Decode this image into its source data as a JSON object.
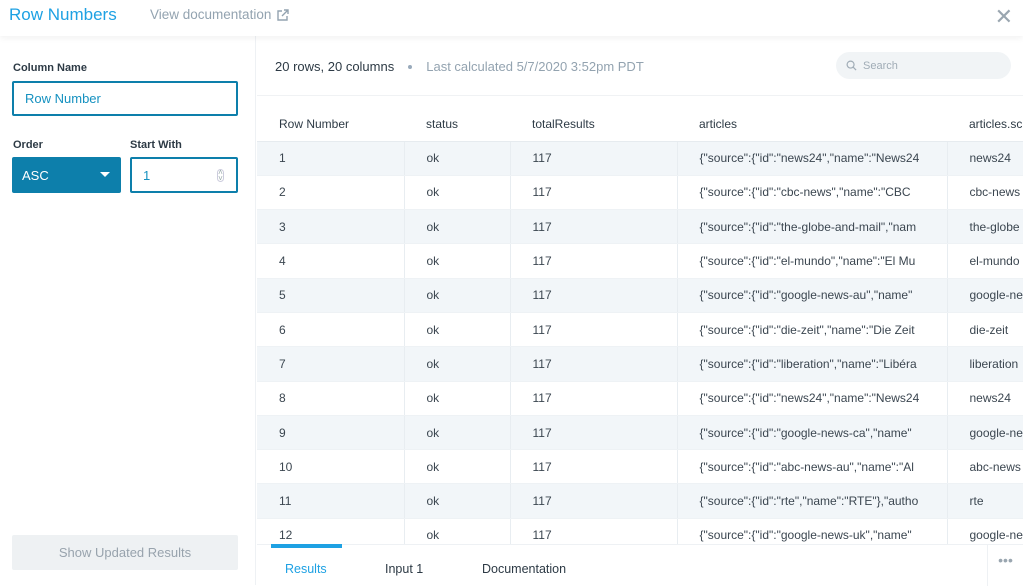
{
  "header": {
    "title": "Row Numbers",
    "doc_link": "View documentation",
    "external_icon": "external-link-icon",
    "close_icon": "close-icon"
  },
  "form": {
    "column_name_label": "Column Name",
    "column_name_value": "Row Number",
    "order_label": "Order",
    "order_value": "ASC",
    "start_with_label": "Start With",
    "start_with_value": "1",
    "show_button": "Show Updated Results"
  },
  "results": {
    "summary": "20 rows, 20 columns",
    "last_calculated": "Last calculated 5/7/2020 3:52pm PDT",
    "search_placeholder": "Search",
    "columns": [
      "Row Number",
      "status",
      "totalResults",
      "articles",
      "articles.sc"
    ],
    "rows": [
      [
        "1",
        "ok",
        "117",
        "{\"source\":{\"id\":\"news24\",\"name\":\"News24",
        "news24"
      ],
      [
        "2",
        "ok",
        "117",
        "{\"source\":{\"id\":\"cbc-news\",\"name\":\"CBC",
        "cbc-news"
      ],
      [
        "3",
        "ok",
        "117",
        "{\"source\":{\"id\":\"the-globe-and-mail\",\"nam",
        "the-globe"
      ],
      [
        "4",
        "ok",
        "117",
        "{\"source\":{\"id\":\"el-mundo\",\"name\":\"El Mu",
        "el-mundo"
      ],
      [
        "5",
        "ok",
        "117",
        "{\"source\":{\"id\":\"google-news-au\",\"name\"",
        "google-ne"
      ],
      [
        "6",
        "ok",
        "117",
        "{\"source\":{\"id\":\"die-zeit\",\"name\":\"Die Zeit",
        "die-zeit"
      ],
      [
        "7",
        "ok",
        "117",
        "{\"source\":{\"id\":\"liberation\",\"name\":\"Libéra",
        "liberation"
      ],
      [
        "8",
        "ok",
        "117",
        "{\"source\":{\"id\":\"news24\",\"name\":\"News24",
        "news24"
      ],
      [
        "9",
        "ok",
        "117",
        "{\"source\":{\"id\":\"google-news-ca\",\"name\"",
        "google-ne"
      ],
      [
        "10",
        "ok",
        "117",
        "{\"source\":{\"id\":\"abc-news-au\",\"name\":\"Al",
        "abc-news"
      ],
      [
        "11",
        "ok",
        "117",
        "{\"source\":{\"id\":\"rte\",\"name\":\"RTE\"},\"autho",
        "rte"
      ],
      [
        "12",
        "ok",
        "117",
        "{\"source\":{\"id\":\"google-news-uk\",\"name\"",
        "google-ne"
      ]
    ]
  },
  "tabs": [
    {
      "label": "Results",
      "active": true
    },
    {
      "label": "Input 1"
    },
    {
      "label": "Documentation"
    }
  ],
  "more_label": "•••",
  "colors": {
    "accent": "#1ea1e3",
    "primary": "#0d7fab"
  }
}
